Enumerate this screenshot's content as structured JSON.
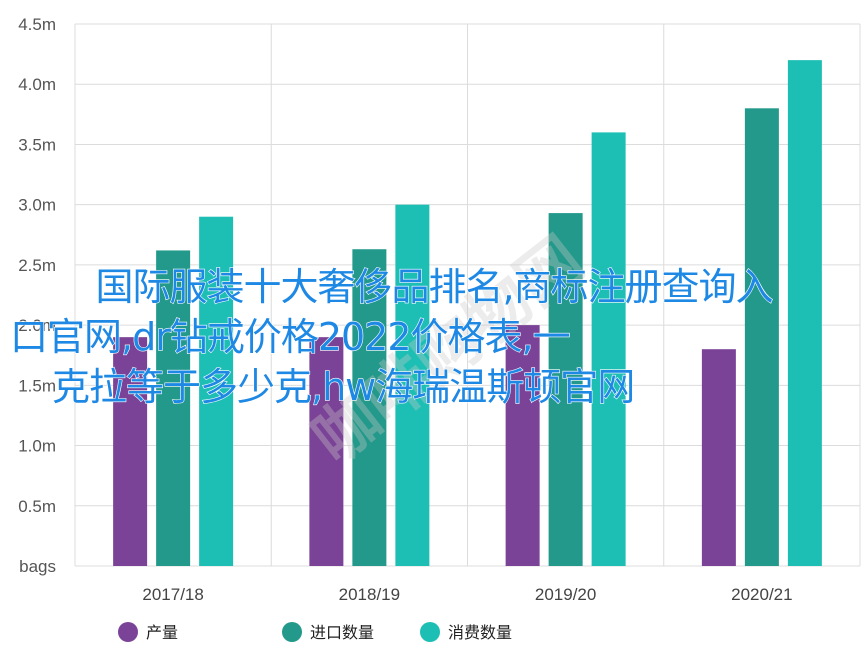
{
  "chart_data": {
    "type": "bar",
    "categories": [
      "2017/18",
      "2018/19",
      "2019/20",
      "2020/21"
    ],
    "series": [
      {
        "name": "产量",
        "color": "#7b4397",
        "values": [
          1.9,
          1.9,
          2.0,
          1.8
        ]
      },
      {
        "name": "进口数量",
        "color": "#22998a",
        "values": [
          2.62,
          2.63,
          2.93,
          3.8
        ]
      },
      {
        "name": "消费数量",
        "color": "#1dbfb4",
        "values": [
          2.9,
          3.0,
          3.6,
          4.2
        ]
      }
    ],
    "y_ticks": [
      "bags",
      "0.5m",
      "1.0m",
      "1.5m",
      "2.0m",
      "2.5m",
      "3.0m",
      "3.5m",
      "4.0m",
      "4.5m"
    ],
    "ylim": [
      0,
      4.5
    ],
    "grid": true,
    "legend_position": "bottom"
  },
  "overlay": {
    "line1": "国际服装十大奢侈品排名,商标注册查询入",
    "line2": "口官网,dr钻戒价格2022价格表,一",
    "line3": "克拉等于多少克,hw海瑞温斯顿官网"
  },
  "watermark": "咖啡购物网"
}
